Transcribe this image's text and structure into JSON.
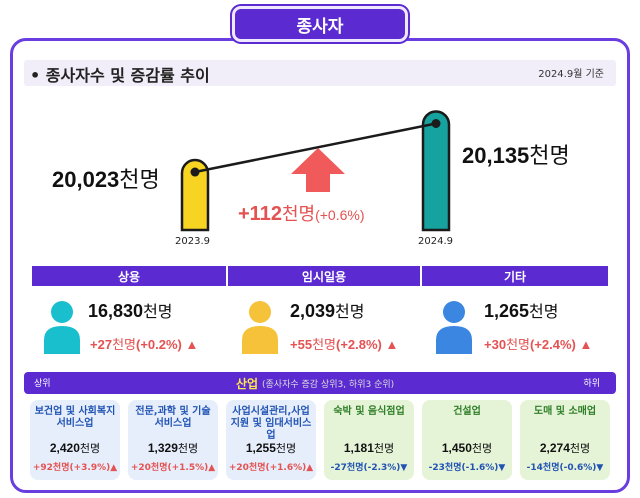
{
  "page_title": "종사자",
  "header": {
    "title": "• 종사자수 및 증감률 추이",
    "date": "2024.9월 기준"
  },
  "chart_data": {
    "type": "bar",
    "categories": [
      "2023.9",
      "2024.9"
    ],
    "values": [
      20023,
      20135
    ],
    "value_labels": [
      "20,023",
      "20,135"
    ],
    "unit": "천명",
    "change": {
      "value": "+112",
      "unit": "천명",
      "pct": "(+0.6%)"
    },
    "colors": [
      "#f7d322",
      "#16a3a0"
    ]
  },
  "categories": [
    {
      "label": "상용",
      "value": "16,830",
      "unit": "천명",
      "change": "+27",
      "change_unit": "천명",
      "pct": "(+0.2%)",
      "color": "#19bfcd"
    },
    {
      "label": "임시일용",
      "value": "2,039",
      "unit": "천명",
      "change": "+55",
      "change_unit": "천명",
      "pct": "(+2.8%)",
      "color": "#f5c23a"
    },
    {
      "label": "기타",
      "value": "1,265",
      "unit": "천명",
      "change": "+30",
      "change_unit": "천명",
      "pct": "(+2.4%)",
      "color": "#3b86e0"
    }
  ],
  "industry": {
    "title": "산업",
    "subtitle": "(종사자수 증감 상위3, 하위3 순위)",
    "left_label": "상위",
    "right_label": "하위",
    "items": [
      {
        "name": "보건업 및 사회복지 서비스업",
        "value": "2,420",
        "unit": "천명",
        "change": "+92천명(+3.9%)",
        "dir": "up"
      },
      {
        "name": "전문,과학 및 기술 서비스업",
        "value": "1,329",
        "unit": "천명",
        "change": "+20천명(+1.5%)",
        "dir": "up"
      },
      {
        "name": "사업시설관리,사업지원 및 임대서비스업",
        "value": "1,255",
        "unit": "천명",
        "change": "+20천명(+1.6%)",
        "dir": "up"
      },
      {
        "name": "숙박 및 음식점업",
        "value": "1,181",
        "unit": "천명",
        "change": "-27천명(-2.3%)",
        "dir": "down"
      },
      {
        "name": "건설업",
        "value": "1,450",
        "unit": "천명",
        "change": "-23천명(-1.6%)",
        "dir": "down"
      },
      {
        "name": "도매 및 소매업",
        "value": "2,274",
        "unit": "천명",
        "change": "-14천명(-0.6%)",
        "dir": "down"
      }
    ]
  }
}
